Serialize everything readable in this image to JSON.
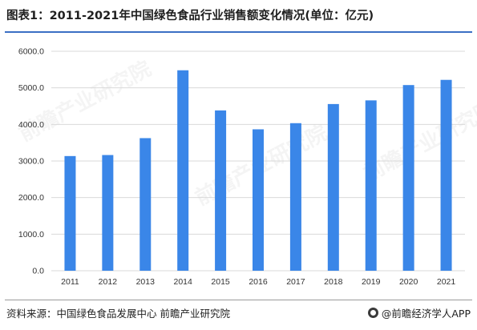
{
  "header": {
    "title": "图表1：2011-2021年中国绿色食品行业销售额变化情况(单位：亿元)"
  },
  "footer": {
    "source": "资料来源：中国绿色食品发展中心 前瞻产业研究院",
    "brand": "@前瞻经济学人APP",
    "brand_icon": "brand-logo-icon"
  },
  "watermark": {
    "text": "前瞻产业研究院"
  },
  "colors": {
    "bar": "#3a86e8",
    "grid": "#d9d9d9",
    "tick_text": "#333333",
    "accent": "#3b6fc4"
  },
  "chart_data": {
    "type": "bar",
    "title": "",
    "xlabel": "",
    "ylabel": "",
    "categories": [
      "2011",
      "2012",
      "2013",
      "2014",
      "2015",
      "2016",
      "2017",
      "2018",
      "2019",
      "2020",
      "2021"
    ],
    "values": [
      3135,
      3163,
      3625,
      5480,
      4383,
      3866,
      4034,
      4557,
      4657,
      5076,
      5218
    ],
    "ylim": [
      0,
      6000
    ],
    "yticks": [
      "0.0",
      "1000.0",
      "2000.0",
      "3000.0",
      "4000.0",
      "5000.0",
      "6000.0"
    ],
    "grid": true,
    "legend": "none"
  }
}
